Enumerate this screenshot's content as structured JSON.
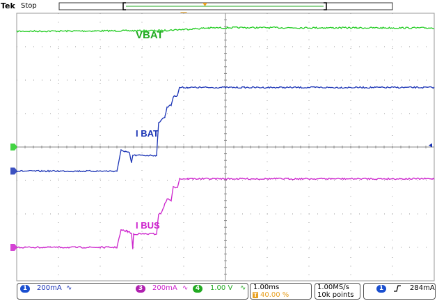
{
  "header": {
    "brand": "Tek",
    "status": "Stop"
  },
  "colors": {
    "ch1": "#1a33b5",
    "ch3": "#cc22cc",
    "ch4": "#22cc22",
    "trigger": "#e8a020",
    "grid": "#9a9a9a",
    "panel_blue": "#1a4fd0"
  },
  "trace_labels": {
    "vbat": "VBAT",
    "ibat": "I BAT",
    "ibus": "I BUS"
  },
  "channels": {
    "ch1": {
      "number": "1",
      "scale": "200mA",
      "coupling": "∿"
    },
    "ch3": {
      "number": "3",
      "scale": "200mA",
      "coupling": "∿"
    },
    "ch4": {
      "number": "4",
      "scale": "1.00 V",
      "coupling": "∿"
    }
  },
  "timebase": {
    "per_div": "1.00ms",
    "trigger_position": "40.00 %"
  },
  "acquisition": {
    "rate": "1.00MS/s",
    "record": "10k points"
  },
  "trigger": {
    "channel": "1",
    "slope": "rising-edge",
    "level": "284mA"
  },
  "chart_data": {
    "type": "line",
    "title": "",
    "xlabel": "",
    "ylabel": "",
    "x_unit": "ms",
    "x_range": [
      -4,
      6
    ],
    "y_unit": "divisions",
    "y_range": [
      -4,
      4
    ],
    "grid": true,
    "series": [
      {
        "name": "VBAT",
        "channel": "4",
        "color": "#22cc22",
        "points": [
          [
            -4,
            3.46
          ],
          [
            -0.6,
            3.48
          ],
          [
            -0.4,
            3.49
          ],
          [
            0.6,
            3.56
          ],
          [
            1.2,
            3.57
          ],
          [
            6,
            3.56
          ]
        ]
      },
      {
        "name": "I BAT",
        "channel": "1",
        "color": "#1a33b5",
        "points": [
          [
            -4,
            -0.72
          ],
          [
            -1.6,
            -0.72
          ],
          [
            -1.5,
            -0.1
          ],
          [
            -1.4,
            -0.13
          ],
          [
            -1.3,
            -0.18
          ],
          [
            -1.25,
            -0.48
          ],
          [
            -1.22,
            -0.25
          ],
          [
            -0.65,
            -0.25
          ],
          [
            -0.6,
            0.72
          ],
          [
            -0.55,
            0.8
          ],
          [
            -0.45,
            0.9
          ],
          [
            -0.4,
            1.2
          ],
          [
            -0.3,
            1.25
          ],
          [
            -0.25,
            1.5
          ],
          [
            -0.15,
            1.55
          ],
          [
            -0.1,
            1.78
          ],
          [
            0.1,
            1.78
          ],
          [
            6,
            1.78
          ]
        ]
      },
      {
        "name": "I BUS",
        "channel": "3",
        "color": "#cc22cc",
        "points": [
          [
            -4,
            -3.0
          ],
          [
            -1.6,
            -3.0
          ],
          [
            -1.5,
            -2.48
          ],
          [
            -1.35,
            -2.52
          ],
          [
            -1.25,
            -2.58
          ],
          [
            -1.22,
            -3.05
          ],
          [
            -1.2,
            -2.6
          ],
          [
            -0.65,
            -2.6
          ],
          [
            -0.6,
            -2.0
          ],
          [
            -0.55,
            -2.0
          ],
          [
            -0.45,
            -1.7
          ],
          [
            -0.4,
            -1.55
          ],
          [
            -0.3,
            -1.6
          ],
          [
            -0.25,
            -1.2
          ],
          [
            -0.15,
            -1.2
          ],
          [
            -0.1,
            -0.95
          ],
          [
            0.1,
            -0.95
          ],
          [
            6,
            -0.95
          ]
        ]
      }
    ]
  }
}
